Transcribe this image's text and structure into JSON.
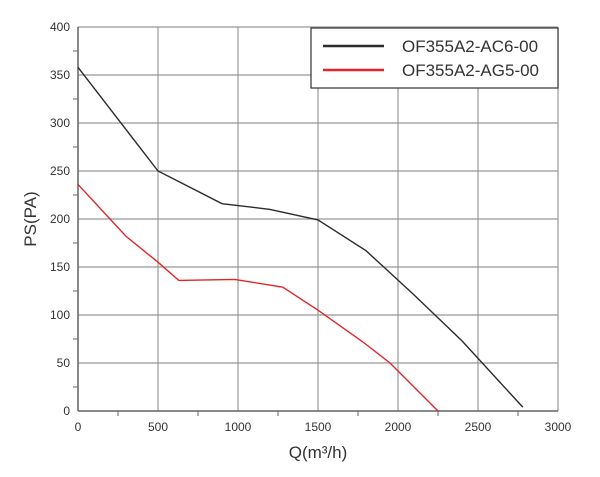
{
  "chart_data": {
    "type": "line",
    "title": "",
    "xlabel": "Q(m³/h)",
    "ylabel": "PS(PA)",
    "xlim": [
      0,
      3000
    ],
    "ylim": [
      0,
      400
    ],
    "xticks": [
      0,
      500,
      1000,
      1500,
      2000,
      2500,
      3000
    ],
    "yticks": [
      0,
      50,
      100,
      150,
      200,
      250,
      300,
      350,
      400
    ],
    "grid": true,
    "legend_position": "top-right",
    "series": [
      {
        "name": "OF355A2-AC6-00",
        "color": "#2b2b2b",
        "x": [
          0,
          500,
          900,
          1200,
          1500,
          1800,
          2100,
          2400,
          2780
        ],
        "y": [
          358,
          250,
          216,
          210,
          199,
          167,
          121,
          73,
          4
        ]
      },
      {
        "name": "OF355A2-AG5-00",
        "color": "#e0262b",
        "x": [
          0,
          300,
          500,
          630,
          980,
          1280,
          1500,
          1780,
          1950,
          2250
        ],
        "y": [
          236,
          182,
          155,
          136,
          137,
          129,
          105,
          72,
          50,
          0
        ]
      }
    ]
  }
}
